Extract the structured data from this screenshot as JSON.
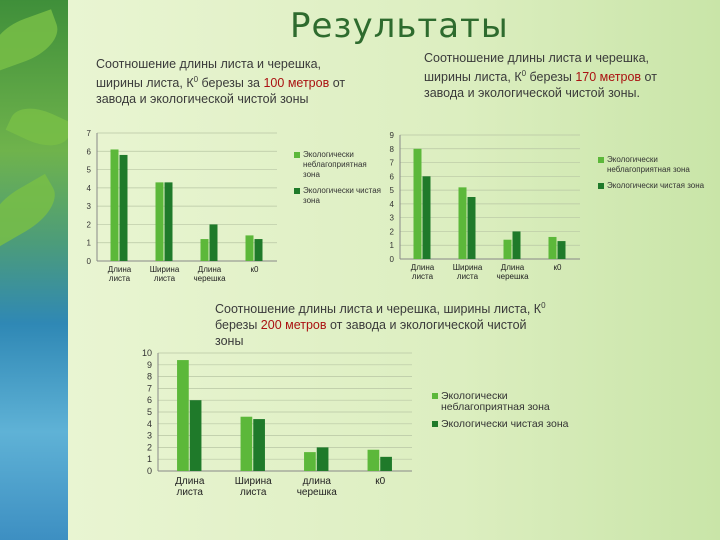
{
  "page": {
    "title": "Результаты"
  },
  "colors": {
    "series1": "#5cb83a",
    "series2": "#1f7a2a",
    "title": "#2e6b2e",
    "accent_text": "#a11111"
  },
  "captions": {
    "c1": {
      "before": "Соотношение длины листа и черешка, ширины листа, К",
      "sup": "0",
      "after": " березы за ",
      "red": "100 метров",
      "tail": " от завода и экологической чистой зоны"
    },
    "c2": {
      "before": "Соотношение длины листа и черешка, ширины листа, К",
      "sup": "0",
      "after": " березы ",
      "red": "170 метров",
      "tail": " от завода и экологической чистой зоны."
    },
    "c3": {
      "before": "Соотношение длины листа и черешка, ширины листа, К",
      "sup": "0",
      "after": " березы ",
      "red": "200 метров",
      "tail": " от завода и экологической чистой зоны"
    }
  },
  "chart_data": [
    {
      "type": "bar",
      "title": "",
      "categories": [
        "Длина листа",
        "Ширина листа",
        "Длина черешка",
        "к0"
      ],
      "ylim": [
        0,
        7
      ],
      "yticks": [
        0,
        1,
        2,
        3,
        4,
        5,
        6,
        7
      ],
      "series": [
        {
          "name": "Экологически неблагоприятная зона",
          "values": [
            6.1,
            4.3,
            1.2,
            1.4
          ]
        },
        {
          "name": "Экологически чистая зона",
          "values": [
            5.8,
            4.3,
            2.0,
            1.2
          ]
        }
      ]
    },
    {
      "type": "bar",
      "title": "",
      "categories": [
        "Длина листа",
        "Ширина листа",
        "Длина черешка",
        "к0"
      ],
      "ylim": [
        0,
        9
      ],
      "yticks": [
        0,
        1,
        2,
        3,
        4,
        5,
        6,
        7,
        8,
        9
      ],
      "series": [
        {
          "name": "Экологически неблагоприятная зона",
          "values": [
            8.0,
            5.2,
            1.4,
            1.6
          ]
        },
        {
          "name": "Экологически чистая зона",
          "values": [
            6.0,
            4.5,
            2.0,
            1.3
          ]
        }
      ]
    },
    {
      "type": "bar",
      "title": "",
      "categories": [
        "Длина листа",
        "Ширина листа",
        "длина черешка",
        "к0"
      ],
      "ylim": [
        0,
        10
      ],
      "yticks": [
        0,
        1,
        2,
        3,
        4,
        5,
        6,
        7,
        8,
        9,
        10
      ],
      "series": [
        {
          "name": "Экологически неблагоприятная зона",
          "values": [
            9.4,
            4.6,
            1.6,
            1.8
          ]
        },
        {
          "name": "Экологически чистая зона",
          "values": [
            6.0,
            4.4,
            2.0,
            1.2
          ]
        }
      ]
    }
  ]
}
